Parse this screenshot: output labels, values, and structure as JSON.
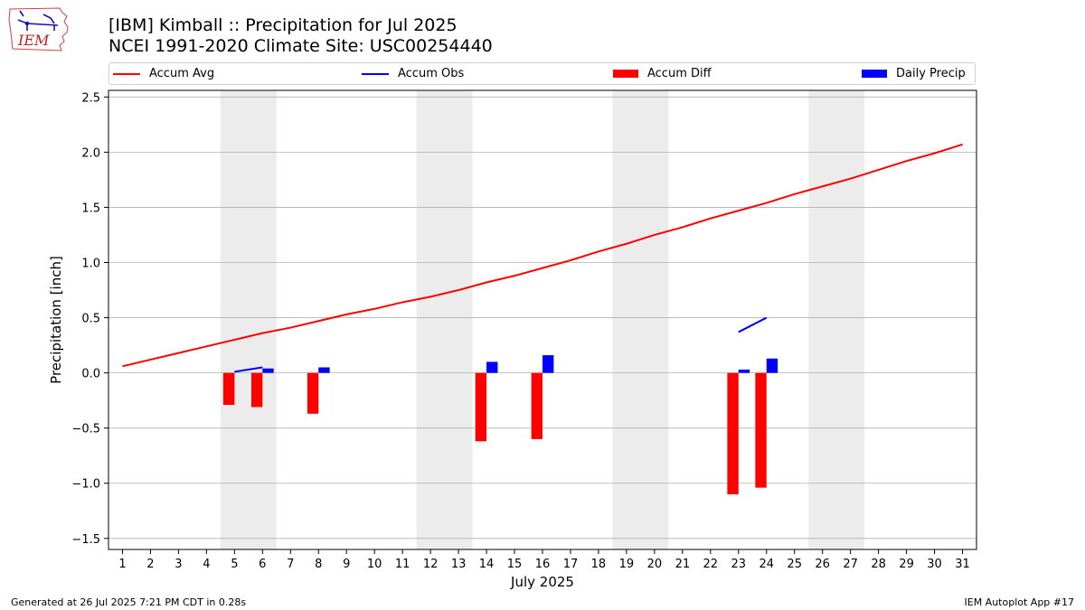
{
  "header": {
    "title_line1": "[IBM] Kimball :: Precipitation for Jul 2025",
    "title_line2": "NCEI 1991-2020 Climate Site: USC00254440"
  },
  "logo": {
    "text": "IEM"
  },
  "legend": {
    "placement": "top",
    "items": [
      {
        "label": "Accum Avg",
        "color": "#ff0000",
        "kind": "line"
      },
      {
        "label": "Accum Obs",
        "color": "#0000ff",
        "kind": "line"
      },
      {
        "label": "Accum Diff",
        "color": "#ff0000",
        "kind": "bar"
      },
      {
        "label": "Daily Precip",
        "color": "#0000ff",
        "kind": "bar"
      }
    ]
  },
  "footer": {
    "left": "Generated at 26 Jul 2025 7:21 PM CDT in 0.28s",
    "right": "IEM Autoplot App #17"
  },
  "chart_data": {
    "type": "bar",
    "xlabel": "July 2025",
    "ylabel": "Precipitation [inch]",
    "xlim": [
      0.5,
      31.5
    ],
    "ylim": [
      -1.6,
      2.56
    ],
    "x_ticks": [
      1,
      2,
      3,
      4,
      5,
      6,
      7,
      8,
      9,
      10,
      11,
      12,
      13,
      14,
      15,
      16,
      17,
      18,
      19,
      20,
      21,
      22,
      23,
      24,
      25,
      26,
      27,
      28,
      29,
      30,
      31
    ],
    "y_ticks": [
      -1.5,
      -1.0,
      -0.5,
      0.0,
      0.5,
      1.0,
      1.5,
      2.0,
      2.5
    ],
    "y_tick_labels": [
      "−1.5",
      "−1.0",
      "−0.5",
      "0.0",
      "0.5",
      "1.0",
      "1.5",
      "2.0",
      "2.5"
    ],
    "grid": "horizontal",
    "weekend_shading": [
      [
        5,
        6
      ],
      [
        12,
        13
      ],
      [
        19,
        20
      ],
      [
        26,
        27
      ]
    ],
    "series": [
      {
        "name": "Accum Avg",
        "kind": "line",
        "color": "#ff0000",
        "x": [
          1,
          2,
          3,
          4,
          5,
          6,
          7,
          8,
          9,
          10,
          11,
          12,
          13,
          14,
          15,
          16,
          17,
          18,
          19,
          20,
          21,
          22,
          23,
          24,
          25,
          26,
          27,
          28,
          29,
          30,
          31
        ],
        "values": [
          0.06,
          0.12,
          0.18,
          0.24,
          0.3,
          0.36,
          0.41,
          0.47,
          0.53,
          0.58,
          0.64,
          0.69,
          0.75,
          0.82,
          0.88,
          0.95,
          1.02,
          1.1,
          1.17,
          1.25,
          1.32,
          1.4,
          1.47,
          1.54,
          1.62,
          1.69,
          1.76,
          1.84,
          1.92,
          1.99,
          2.07
        ]
      },
      {
        "name": "Accum Obs",
        "kind": "line",
        "color": "#0000ff",
        "segments": [
          {
            "x": [
              5,
              6
            ],
            "values": [
              0.01,
              0.05
            ]
          },
          {
            "x": [
              23,
              24
            ],
            "values": [
              0.37,
              0.5
            ]
          }
        ]
      },
      {
        "name": "Accum Diff",
        "kind": "bar",
        "color": "#ff0000",
        "x": [
          5,
          6,
          8,
          14,
          16,
          23,
          24
        ],
        "values": [
          -0.29,
          -0.31,
          -0.37,
          -0.62,
          -0.6,
          -1.1,
          -1.04
        ]
      },
      {
        "name": "Daily Precip",
        "kind": "bar",
        "color": "#0000ff",
        "x": [
          6,
          8,
          14,
          16,
          23,
          24
        ],
        "values": [
          0.04,
          0.05,
          0.1,
          0.16,
          0.03,
          0.13
        ]
      }
    ]
  }
}
